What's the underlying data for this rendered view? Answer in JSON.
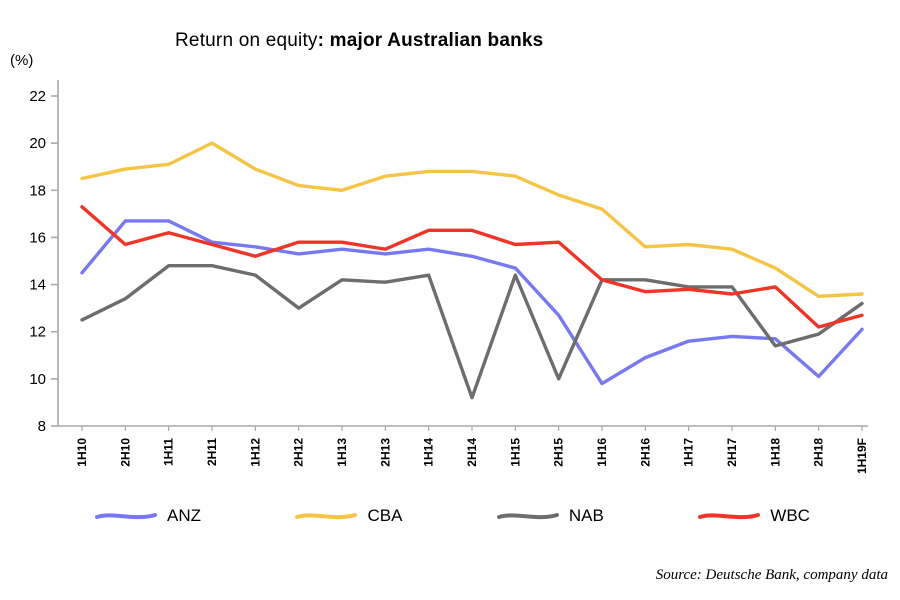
{
  "title": {
    "normal": "Return on equity",
    "bold": ": major Australian banks"
  },
  "ylabel": "(%)",
  "source": "Source: Deutsche Bank, company data",
  "chart_data": {
    "type": "line",
    "title": "Return on equity: major Australian banks",
    "ylabel": "(%)",
    "ylim": [
      8,
      22
    ],
    "yticks": [
      8,
      10,
      12,
      14,
      16,
      18,
      20,
      22
    ],
    "grid": false,
    "legend_position": "bottom",
    "categories": [
      "1H10",
      "2H10",
      "1H11",
      "2H11",
      "1H12",
      "2H12",
      "1H13",
      "2H13",
      "1H14",
      "2H14",
      "1H15",
      "2H15",
      "1H16",
      "2H16",
      "1H17",
      "2H17",
      "1H18",
      "2H18",
      "1H19F"
    ],
    "series": [
      {
        "name": "ANZ",
        "color": "#7878f0",
        "values": [
          14.5,
          16.7,
          16.7,
          15.8,
          15.6,
          15.3,
          15.5,
          15.3,
          15.5,
          15.2,
          14.7,
          12.7,
          9.8,
          10.9,
          11.6,
          11.8,
          11.7,
          10.1,
          12.1
        ]
      },
      {
        "name": "CBA",
        "color": "#f6c445",
        "values": [
          18.5,
          18.9,
          19.1,
          20.0,
          18.9,
          18.2,
          18.0,
          18.6,
          18.8,
          18.8,
          18.6,
          17.8,
          17.2,
          15.6,
          15.7,
          15.5,
          14.7,
          13.5,
          13.6
        ]
      },
      {
        "name": "NAB",
        "color": "#6d6d6d",
        "values": [
          12.5,
          13.4,
          14.8,
          14.8,
          14.4,
          13.0,
          14.2,
          14.1,
          14.4,
          9.2,
          14.4,
          10.0,
          14.2,
          14.2,
          13.9,
          13.9,
          11.4,
          11.9,
          13.2
        ]
      },
      {
        "name": "WBC",
        "color": "#ee3527",
        "values": [
          17.3,
          15.7,
          16.2,
          15.7,
          15.2,
          15.8,
          15.8,
          15.5,
          16.3,
          16.3,
          15.7,
          15.8,
          14.2,
          13.7,
          13.8,
          13.6,
          13.9,
          12.2,
          12.7
        ]
      }
    ]
  }
}
